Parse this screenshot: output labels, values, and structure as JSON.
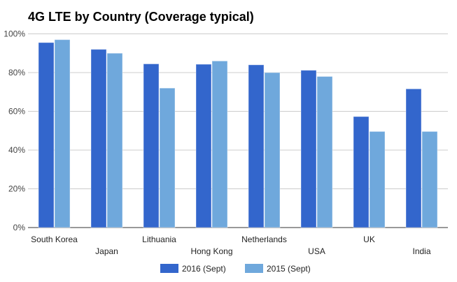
{
  "chart_data": {
    "type": "bar",
    "title": "4G LTE by Country (Coverage typical)",
    "xlabel": "",
    "ylabel": "",
    "categories": [
      "South Korea",
      "Japan",
      "Lithuania",
      "Hong Kong",
      "Netherlands",
      "USA",
      "UK",
      "India"
    ],
    "series": [
      {
        "name": "2016 (Sept)",
        "color": "#3366cc",
        "values": [
          95.5,
          92,
          84.5,
          84.3,
          84,
          81.2,
          57.3,
          71.6
        ]
      },
      {
        "name": "2015 (Sept)",
        "color": "#6fa8dc",
        "values": [
          97,
          90,
          72,
          86,
          80,
          78,
          49.6,
          49.6
        ]
      }
    ],
    "ylim": [
      0,
      100
    ],
    "yticks": [
      0,
      20,
      40,
      60,
      80,
      100
    ],
    "ytick_labels": [
      "0%",
      "20%",
      "40%",
      "60%",
      "80%",
      "100%"
    ],
    "grid": true,
    "legend_position": "bottom"
  }
}
